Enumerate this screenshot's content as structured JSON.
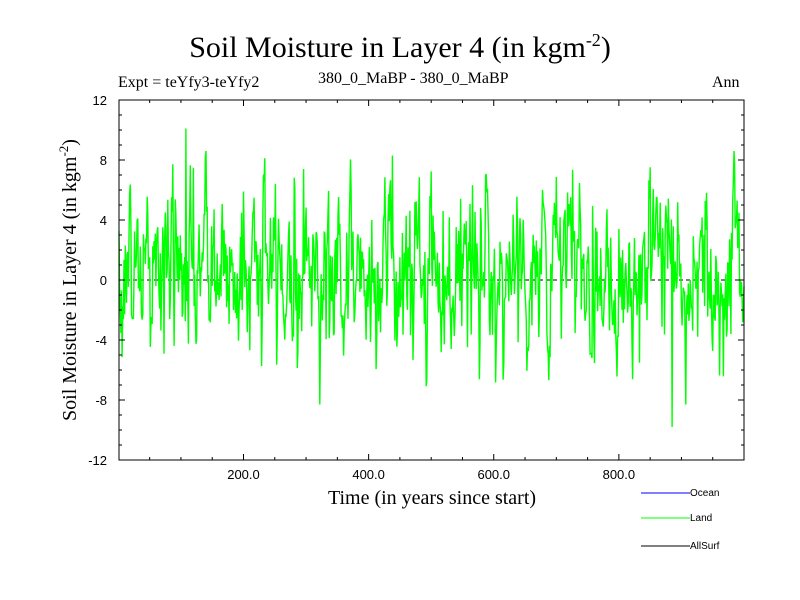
{
  "chart_data": {
    "type": "line",
    "title": "Soil Moisture in Layer 4 (in kgm",
    "title_sup": "-2",
    "title_close": ")",
    "subtitle_left": "Expt = teYfy3-teYfy2",
    "subtitle_center": "380_0_MaBP - 380_0_MaBP",
    "subtitle_right": "Ann",
    "xlabel": "Time (in years since start)",
    "ylabel": "Soil Moisture in Layer 4 (in kgm",
    "ylabel_sup": "-2",
    "ylabel_close": ")",
    "xlim": [
      1,
      1000
    ],
    "ylim": [
      -12,
      12
    ],
    "xticks": [
      200,
      400,
      600,
      800
    ],
    "xtick_labels": [
      "200.0",
      "400.0",
      "600.0",
      "800.0"
    ],
    "yticks": [
      12,
      8,
      4,
      0,
      -4,
      -8,
      -12
    ],
    "ytick_labels": [
      "12",
      "8",
      "4",
      "0",
      "-4",
      "-8",
      "-12"
    ],
    "zero_line": 0,
    "series": [
      {
        "name": "Ocean",
        "color": "#0000ff",
        "values": []
      },
      {
        "name": "Land",
        "color": "#00ff00",
        "values": [],
        "n_points": 1000,
        "mean": 0.8,
        "std": 2.6,
        "min": -9.8,
        "max": 10.1,
        "min_at": 885,
        "max_at": 108
      },
      {
        "name": "AllSurf",
        "color": "#000000",
        "values": []
      }
    ]
  }
}
